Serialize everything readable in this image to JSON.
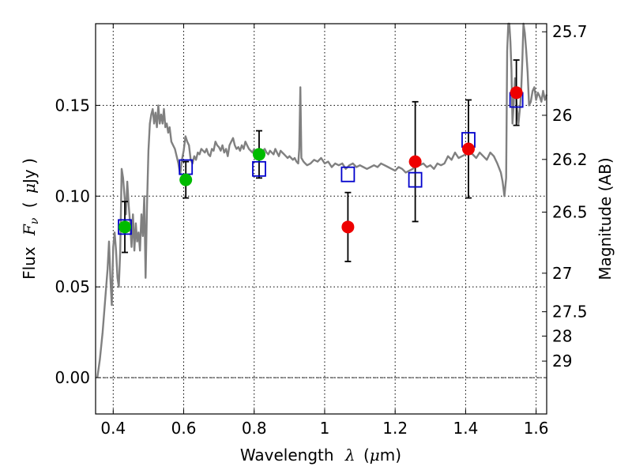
{
  "chart_data": {
    "type": "scatter",
    "xlabel_prefix": "Wavelength",
    "xlabel_symbol": "λ",
    "xlabel_unit_prefix": "(",
    "xlabel_unit_mu": "μ",
    "xlabel_unit_suffix": "m)",
    "ylabel_prefix": "Flux",
    "ylabel_symbol": "F",
    "ylabel_sub": "ν",
    "ylabel_unit_open": "(",
    "ylabel_unit_mu": "μ",
    "ylabel_unit_suffix": "Jy )",
    "y2label": "Magnitude (AB)",
    "xlim": [
      0.35,
      1.63
    ],
    "ylim": [
      -0.02,
      0.195
    ],
    "grid": true,
    "x_ticks": [
      {
        "value": 0.4,
        "label": "0.4"
      },
      {
        "value": 0.6,
        "label": "0.6"
      },
      {
        "value": 0.8,
        "label": "0.8"
      },
      {
        "value": 1.0,
        "label": "1"
      },
      {
        "value": 1.2,
        "label": "1.2"
      },
      {
        "value": 1.4,
        "label": "1.4"
      },
      {
        "value": 1.6,
        "label": "1.6"
      }
    ],
    "y_ticks": [
      {
        "value": 0.0,
        "label": "0.00"
      },
      {
        "value": 0.05,
        "label": "0.05"
      },
      {
        "value": 0.1,
        "label": "0.10"
      },
      {
        "value": 0.15,
        "label": "0.15"
      }
    ],
    "mag_ticks": [
      {
        "value": 25.7,
        "label": "25.7"
      },
      {
        "value": 26,
        "label": "26"
      },
      {
        "value": 26.2,
        "label": "26.2"
      },
      {
        "value": 26.5,
        "label": "26.5"
      },
      {
        "value": 27,
        "label": "27"
      },
      {
        "value": 27.5,
        "label": "27.5"
      },
      {
        "value": 28,
        "label": "28"
      },
      {
        "value": 29,
        "label": "29"
      }
    ],
    "model_spectrum": {
      "color": "#808080",
      "x": [
        0.355,
        0.362,
        0.37,
        0.378,
        0.384,
        0.388,
        0.392,
        0.396,
        0.4,
        0.404,
        0.408,
        0.412,
        0.416,
        0.42,
        0.424,
        0.428,
        0.432,
        0.436,
        0.44,
        0.444,
        0.448,
        0.452,
        0.456,
        0.46,
        0.464,
        0.468,
        0.472,
        0.476,
        0.48,
        0.484,
        0.488,
        0.492,
        0.496,
        0.5,
        0.504,
        0.508,
        0.512,
        0.516,
        0.52,
        0.524,
        0.528,
        0.532,
        0.536,
        0.54,
        0.544,
        0.548,
        0.552,
        0.556,
        0.56,
        0.565,
        0.57,
        0.575,
        0.58,
        0.585,
        0.59,
        0.595,
        0.6,
        0.605,
        0.61,
        0.615,
        0.62,
        0.625,
        0.63,
        0.635,
        0.64,
        0.645,
        0.65,
        0.655,
        0.66,
        0.665,
        0.67,
        0.675,
        0.68,
        0.685,
        0.69,
        0.695,
        0.7,
        0.705,
        0.71,
        0.715,
        0.72,
        0.725,
        0.73,
        0.735,
        0.74,
        0.745,
        0.75,
        0.755,
        0.76,
        0.765,
        0.77,
        0.775,
        0.78,
        0.785,
        0.79,
        0.795,
        0.8,
        0.805,
        0.81,
        0.815,
        0.82,
        0.825,
        0.83,
        0.835,
        0.84,
        0.845,
        0.85,
        0.855,
        0.86,
        0.865,
        0.87,
        0.875,
        0.88,
        0.885,
        0.89,
        0.895,
        0.9,
        0.905,
        0.91,
        0.915,
        0.92,
        0.925,
        0.928,
        0.931,
        0.934,
        0.937,
        0.94,
        0.945,
        0.95,
        0.96,
        0.97,
        0.98,
        0.99,
        1.0,
        1.01,
        1.02,
        1.03,
        1.04,
        1.05,
        1.06,
        1.07,
        1.08,
        1.09,
        1.1,
        1.11,
        1.12,
        1.13,
        1.14,
        1.15,
        1.16,
        1.17,
        1.18,
        1.19,
        1.2,
        1.21,
        1.22,
        1.23,
        1.24,
        1.25,
        1.26,
        1.27,
        1.28,
        1.29,
        1.3,
        1.31,
        1.32,
        1.33,
        1.34,
        1.35,
        1.36,
        1.37,
        1.38,
        1.39,
        1.4,
        1.41,
        1.42,
        1.43,
        1.44,
        1.45,
        1.46,
        1.47,
        1.48,
        1.49,
        1.5,
        1.505,
        1.51,
        1.515,
        1.518,
        1.521,
        1.524,
        1.527,
        1.53,
        1.533,
        1.536,
        1.54,
        1.545,
        1.55,
        1.555,
        1.558,
        1.561,
        1.564,
        1.568,
        1.572,
        1.576,
        1.58,
        1.585,
        1.59,
        1.595,
        1.6,
        1.605,
        1.61,
        1.615,
        1.62,
        1.625,
        1.63
      ],
      "y": [
        0.0,
        0.01,
        0.025,
        0.045,
        0.06,
        0.075,
        0.055,
        0.04,
        0.072,
        0.08,
        0.07,
        0.055,
        0.05,
        0.07,
        0.115,
        0.11,
        0.1,
        0.09,
        0.108,
        0.095,
        0.085,
        0.072,
        0.09,
        0.07,
        0.085,
        0.075,
        0.08,
        0.07,
        0.09,
        0.078,
        0.1,
        0.055,
        0.095,
        0.125,
        0.14,
        0.145,
        0.148,
        0.14,
        0.146,
        0.138,
        0.15,
        0.14,
        0.145,
        0.14,
        0.148,
        0.138,
        0.14,
        0.135,
        0.138,
        0.13,
        0.128,
        0.126,
        0.122,
        0.118,
        0.112,
        0.12,
        0.125,
        0.133,
        0.13,
        0.128,
        0.12,
        0.118,
        0.122,
        0.12,
        0.124,
        0.123,
        0.126,
        0.125,
        0.124,
        0.126,
        0.123,
        0.122,
        0.126,
        0.125,
        0.13,
        0.128,
        0.127,
        0.125,
        0.128,
        0.124,
        0.126,
        0.122,
        0.128,
        0.13,
        0.132,
        0.128,
        0.126,
        0.127,
        0.125,
        0.128,
        0.126,
        0.13,
        0.128,
        0.126,
        0.125,
        0.124,
        0.126,
        0.122,
        0.125,
        0.123,
        0.124,
        0.125,
        0.126,
        0.124,
        0.123,
        0.125,
        0.124,
        0.123,
        0.126,
        0.124,
        0.122,
        0.125,
        0.124,
        0.123,
        0.122,
        0.121,
        0.122,
        0.121,
        0.12,
        0.121,
        0.119,
        0.118,
        0.126,
        0.16,
        0.121,
        0.12,
        0.119,
        0.118,
        0.117,
        0.118,
        0.12,
        0.119,
        0.121,
        0.118,
        0.119,
        0.116,
        0.118,
        0.117,
        0.118,
        0.115,
        0.117,
        0.118,
        0.116,
        0.117,
        0.116,
        0.115,
        0.116,
        0.117,
        0.116,
        0.118,
        0.117,
        0.116,
        0.115,
        0.114,
        0.116,
        0.115,
        0.113,
        0.114,
        0.115,
        0.118,
        0.117,
        0.118,
        0.116,
        0.117,
        0.115,
        0.118,
        0.117,
        0.118,
        0.122,
        0.12,
        0.124,
        0.121,
        0.122,
        0.123,
        0.124,
        0.123,
        0.121,
        0.124,
        0.122,
        0.12,
        0.124,
        0.122,
        0.118,
        0.113,
        0.108,
        0.1,
        0.11,
        0.18,
        0.195,
        0.195,
        0.185,
        0.17,
        0.14,
        0.15,
        0.165,
        0.15,
        0.14,
        0.15,
        0.16,
        0.175,
        0.195,
        0.19,
        0.18,
        0.168,
        0.15,
        0.152,
        0.158,
        0.16,
        0.153,
        0.157,
        0.155,
        0.152,
        0.158,
        0.153,
        0.156
      ]
    },
    "points": [
      {
        "x": 0.433,
        "y": 0.083,
        "yerr": 0.014,
        "color": "#00bb00"
      },
      {
        "x": 0.606,
        "y": 0.109,
        "yerr": 0.01,
        "color": "#00bb00"
      },
      {
        "x": 0.814,
        "y": 0.123,
        "yerr": 0.013,
        "color": "#00bb00"
      },
      {
        "x": 1.066,
        "y": 0.083,
        "yerr": 0.019,
        "color": "#ee0000"
      },
      {
        "x": 1.257,
        "y": 0.119,
        "yerr": 0.033,
        "color": "#ee0000"
      },
      {
        "x": 1.408,
        "y": 0.126,
        "yerr": 0.027,
        "color": "#ee0000"
      },
      {
        "x": 1.544,
        "y": 0.157,
        "yerr": 0.018,
        "color": "#ee0000"
      }
    ],
    "model_points": [
      {
        "x": 0.433,
        "y": 0.083
      },
      {
        "x": 0.606,
        "y": 0.116
      },
      {
        "x": 0.814,
        "y": 0.115
      },
      {
        "x": 1.066,
        "y": 0.112
      },
      {
        "x": 1.257,
        "y": 0.109
      },
      {
        "x": 1.408,
        "y": 0.131
      },
      {
        "x": 1.544,
        "y": 0.153
      }
    ],
    "model_point_color": "#0000cc"
  }
}
